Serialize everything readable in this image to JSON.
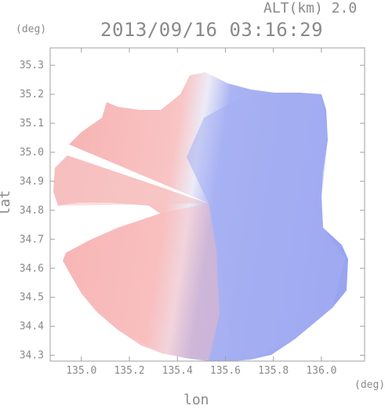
{
  "header": {
    "altitude_label": "ALT(km) 2.0",
    "timestamp": "2013/09/16 03:16:29"
  },
  "chart_data": {
    "type": "heatmap",
    "title": "2013/09/16 03:16:29",
    "xlabel": "lon",
    "ylabel": "lat",
    "x_unit": "(deg)",
    "y_unit": "(deg)",
    "xlim": [
      134.87,
      136.18
    ],
    "ylim": [
      34.28,
      35.36
    ],
    "x_ticks": [
      135.0,
      135.2,
      135.4,
      135.6,
      135.8,
      136.0
    ],
    "y_ticks": [
      34.3,
      34.4,
      34.5,
      34.6,
      34.7,
      34.8,
      34.9,
      35.0,
      35.1,
      35.2,
      35.3
    ],
    "x_tick_labels": [
      "135.0",
      "135.2",
      "135.4",
      "135.6",
      "135.8",
      "136.0"
    ],
    "y_tick_labels": [
      "34.3",
      "34.4",
      "34.5",
      "34.6",
      "34.7",
      "34.8",
      "34.9",
      "35.0",
      "35.1",
      "35.2",
      "35.3"
    ],
    "radar_center": [
      135.52,
      34.82
    ],
    "radar_range_deg": 0.5,
    "colors": {
      "approaching": "#8f9cf2",
      "receding": "#f7a8a8",
      "frame": "#a0a0a0"
    },
    "grid": false
  }
}
